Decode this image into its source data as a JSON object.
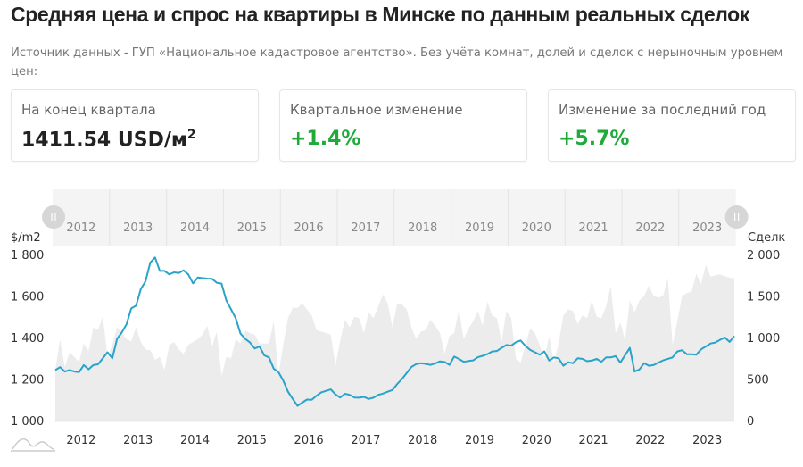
{
  "header": {
    "title": "Средняя цена и спрос на квартиры в Минске по данным реальных сделок",
    "subtitle": "Источник данных - ГУП «Национальное кадастровое агентство». Без учёта комнат, долей и сделок с нерыночным уровнем цен:"
  },
  "cards": [
    {
      "label": "На конец квартала",
      "value": "1411.54 USD/м",
      "sup": "2"
    },
    {
      "label": "Квартальное изменение",
      "value": "+1.4%"
    },
    {
      "label": "Изменение за последний год",
      "value": "+5.7%"
    }
  ],
  "colors": {
    "price_line": "#2aa3c9",
    "deals_area": "#ececec",
    "positive": "#1faa3a"
  },
  "chart_data": {
    "type": "line",
    "x_start": "2012-01",
    "x_end": "2023-12",
    "x_tick_labels": [
      "2012",
      "2013",
      "2014",
      "2015",
      "2016",
      "2017",
      "2018",
      "2019",
      "2020",
      "2021",
      "2022",
      "2023"
    ],
    "navigator_labels": [
      "2012",
      "2013",
      "2014",
      "2015",
      "2016",
      "2017",
      "2018",
      "2019",
      "2020",
      "2021",
      "2022",
      "2023"
    ],
    "y_left": {
      "label": "$/m2",
      "range": [
        1000,
        1800
      ],
      "ticks": [
        "1 000",
        "1 200",
        "1 400",
        "1 600",
        "1 800"
      ],
      "tick_values": [
        1000,
        1200,
        1400,
        1600,
        1800
      ]
    },
    "y_right": {
      "label": "Сделк",
      "range": [
        0,
        2000
      ],
      "ticks": [
        "0",
        "500",
        "1 000",
        "1 500",
        "2 000"
      ],
      "tick_values": [
        0,
        500,
        1000,
        1500,
        2000
      ]
    },
    "series": [
      {
        "type": "line",
        "axis": "left",
        "values": [
          1243,
          1257,
          1236,
          1243,
          1236,
          1233,
          1267,
          1247,
          1267,
          1271,
          1300,
          1329,
          1300,
          1393,
          1424,
          1464,
          1540,
          1553,
          1633,
          1671,
          1761,
          1786,
          1721,
          1721,
          1704,
          1714,
          1711,
          1724,
          1704,
          1661,
          1689,
          1686,
          1684,
          1683,
          1664,
          1660,
          1579,
          1536,
          1493,
          1419,
          1393,
          1376,
          1347,
          1357,
          1314,
          1304,
          1250,
          1233,
          1193,
          1139,
          1104,
          1071,
          1086,
          1101,
          1100,
          1119,
          1136,
          1143,
          1150,
          1126,
          1111,
          1129,
          1124,
          1111,
          1110,
          1114,
          1104,
          1110,
          1124,
          1130,
          1139,
          1147,
          1176,
          1200,
          1229,
          1258,
          1272,
          1276,
          1273,
          1268,
          1275,
          1285,
          1282,
          1268,
          1308,
          1297,
          1283,
          1287,
          1290,
          1305,
          1312,
          1320,
          1333,
          1335,
          1350,
          1364,
          1361,
          1377,
          1386,
          1360,
          1340,
          1329,
          1317,
          1333,
          1289,
          1304,
          1300,
          1264,
          1281,
          1276,
          1300,
          1297,
          1286,
          1289,
          1297,
          1283,
          1304,
          1304,
          1310,
          1279,
          1315,
          1350,
          1236,
          1246,
          1276,
          1264,
          1267,
          1279,
          1290,
          1297,
          1304,
          1333,
          1339,
          1319,
          1319,
          1317,
          1343,
          1357,
          1371,
          1376,
          1389,
          1400,
          1379,
          1407
        ]
      },
      {
        "type": "area",
        "axis": "right",
        "values": [
          607,
          982,
          643,
          821,
          768,
          704,
          929,
          839,
          1125,
          1089,
          1261,
          768,
          911,
          1125,
          1054,
          982,
          954,
          1125,
          946,
          857,
          846,
          732,
          768,
          607,
          911,
          946,
          857,
          804,
          911,
          946,
          982,
          1036,
          1143,
          893,
          1071,
          536,
          768,
          750,
          982,
          929,
          1082,
          1054,
          1036,
          929,
          929,
          929,
          1196,
          554,
          911,
          1232,
          1357,
          1357,
          1411,
          1339,
          1268,
          1089,
          1071,
          1054,
          1036,
          661,
          964,
          1214,
          1125,
          1250,
          1232,
          1054,
          1304,
          1232,
          1375,
          1518,
          1411,
          1125,
          1411,
          1400,
          1339,
          1125,
          982,
          1071,
          1089,
          1214,
          1143,
          1054,
          804,
          1018,
          1054,
          1339,
          982,
          1107,
          1196,
          1321,
          1143,
          1429,
          1268,
          1232,
          946,
          1321,
          1232,
          750,
          696,
          911,
          1107,
          1054,
          911,
          732,
          1018,
          696,
          929,
          1268,
          1339,
          1321,
          1161,
          1268,
          1232,
          1446,
          1250,
          1232,
          1375,
          1625,
          1054,
          1179,
          964,
          1446,
          1304,
          1446,
          1500,
          1625,
          1500,
          1482,
          1500,
          1714,
          911,
          1196,
          1500,
          1536,
          1554,
          1768,
          1643,
          1875,
          1732,
          1750,
          1761,
          1740,
          1720,
          1714
        ]
      }
    ],
    "grid": false,
    "legend": "none"
  }
}
